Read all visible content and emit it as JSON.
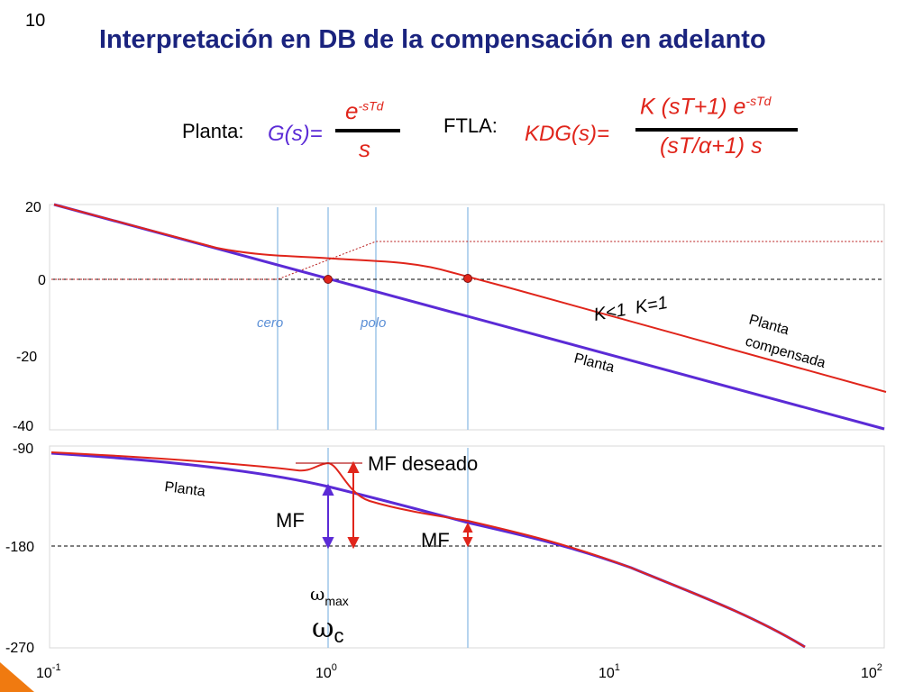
{
  "slide_number": "10",
  "title": "Interpretación en DB de la compensación en adelanto",
  "formula_plant": {
    "label": "Planta:",
    "lhs": "G(s)=",
    "num_base": "e",
    "num_exp": "-sTd",
    "den": "s"
  },
  "formula_ftla": {
    "label": "FTLA:",
    "lhs": "KDG(s)=",
    "num_base": "K (sT+1) e",
    "num_exp": "-sTd",
    "den": "(sT/α+1) s"
  },
  "magnitude_plot": {
    "y_ticks": [
      "20",
      "0",
      "-20",
      "-40"
    ],
    "labels": {
      "cero": "cero",
      "polo": "polo",
      "k_less": "K<1",
      "k_eq": "K=1",
      "planta_comp_1": "Planta",
      "planta_comp_2": "compensada",
      "planta": "Planta"
    }
  },
  "phase_plot": {
    "y_ticks": [
      "-90",
      "-180",
      "-270"
    ],
    "labels": {
      "mf_deseado": "MF deseado",
      "mf_left": "MF",
      "mf_right": "MF",
      "planta": "Planta",
      "wmax_base": "ω",
      "wmax_sub": "max",
      "wc_base": "ω",
      "wc_sub": "c"
    }
  },
  "x_axis": {
    "ticks": [
      {
        "base": "10",
        "exp": "-1"
      },
      {
        "base": "10",
        "exp": "0"
      },
      {
        "base": "10",
        "exp": "1"
      },
      {
        "base": "10",
        "exp": "2"
      }
    ]
  },
  "colors": {
    "title": "#1a237e",
    "compensated": "#e0251b",
    "plant": "#5b2bd6",
    "marker_lines": "#9ec5e8",
    "marker_dot": "#e0251b"
  }
}
